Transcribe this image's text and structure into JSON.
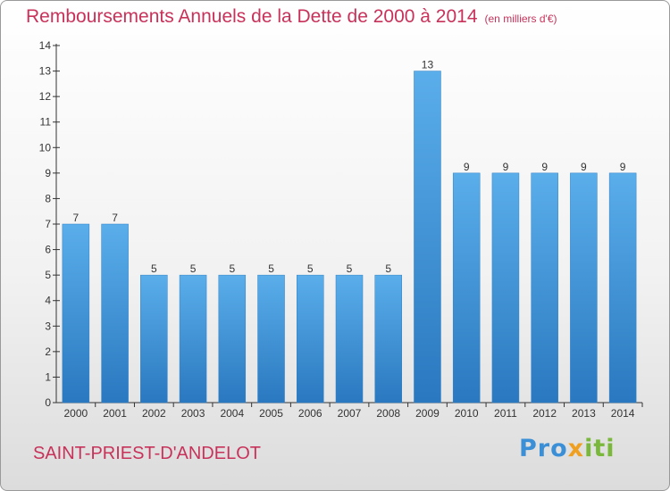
{
  "colors": {
    "accent": "#c8325a",
    "bar": "#4b9fe0",
    "bar_dark": "#2a78c0"
  },
  "logo": {
    "part1": "Pro",
    "part2": "x",
    "part3": "iti"
  },
  "commune": "SAINT-PRIEST-D'ANDELOT",
  "chart_data": {
    "type": "bar",
    "title": "Remboursements Annuels de la Dette de 2000 à 2014",
    "subtitle": "(en milliers d'€)",
    "categories": [
      "2000",
      "2001",
      "2002",
      "2003",
      "2004",
      "2005",
      "2006",
      "2007",
      "2008",
      "2009",
      "2010",
      "2011",
      "2012",
      "2013",
      "2014"
    ],
    "values": [
      7,
      7,
      5,
      5,
      5,
      5,
      5,
      5,
      5,
      13,
      9,
      9,
      9,
      9,
      9
    ],
    "ylim": [
      0,
      14
    ],
    "yticks": [
      0,
      1,
      2,
      3,
      4,
      5,
      6,
      7,
      8,
      9,
      10,
      11,
      12,
      13,
      14
    ],
    "grid": false,
    "legend": "none"
  }
}
